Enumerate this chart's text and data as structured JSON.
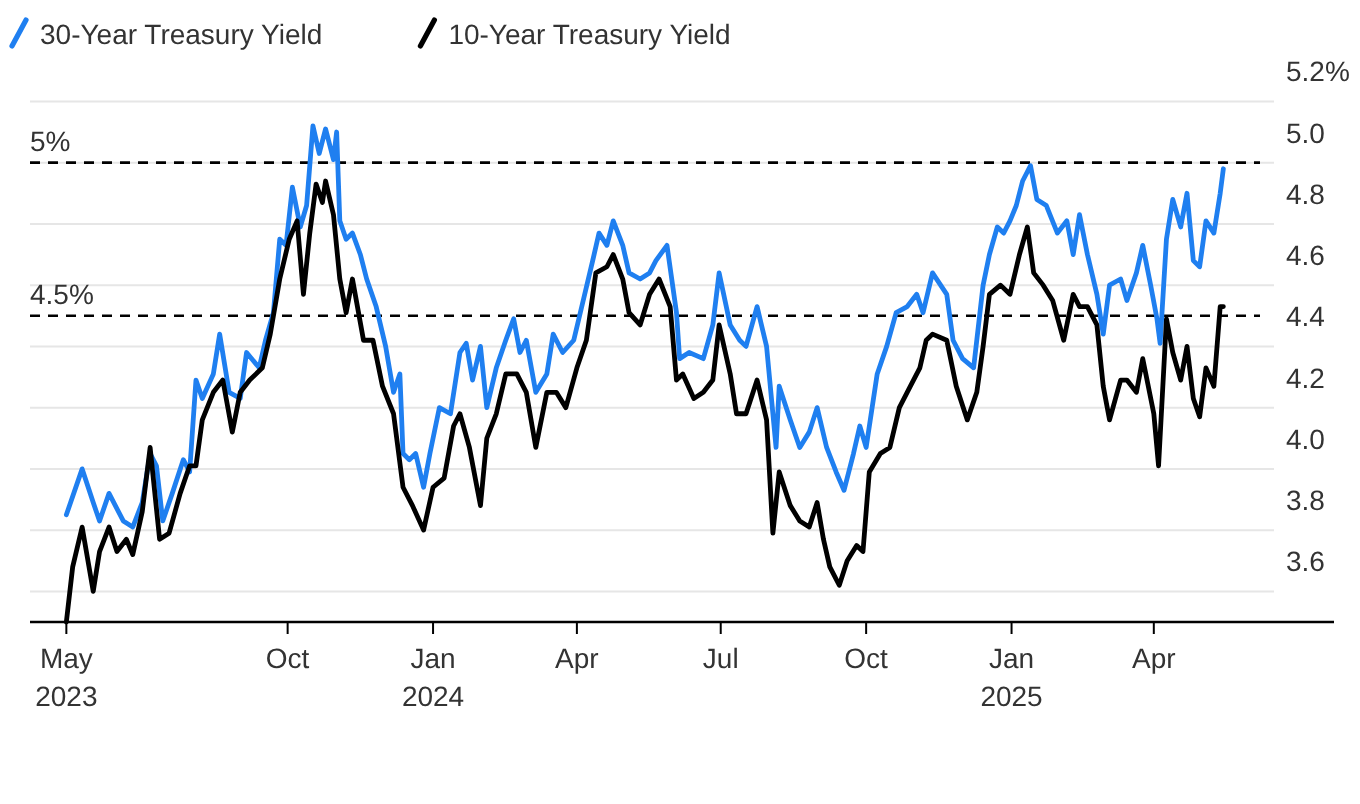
{
  "chart_data": {
    "type": "line",
    "legend": "top left",
    "grid": "y",
    "xlim": [
      "2023-04-21",
      "2025-07-24"
    ],
    "ylim": [
      3.5,
      5.2
    ],
    "xticks": [
      {
        "value": "2023-05-14",
        "label": "May\n2023"
      },
      {
        "value": "2023-10-01",
        "label": "Oct"
      },
      {
        "value": "2024-01-01",
        "label": "Jan\n2024"
      },
      {
        "value": "2024-04-01",
        "label": "Apr"
      },
      {
        "value": "2024-07-01",
        "label": "Jul"
      },
      {
        "value": "2024-10-01",
        "label": "Oct"
      },
      {
        "value": "2025-01-01",
        "label": "Jan\n2025"
      },
      {
        "value": "2025-04-01",
        "label": "Apr"
      }
    ],
    "yticks": [
      3.6,
      3.8,
      {
        "value": 4,
        "label": "4.0"
      },
      4.2,
      4.4,
      4.6,
      4.8,
      {
        "value": 5,
        "label": "5.0"
      },
      {
        "value": 5.2,
        "label": "5.2%"
      }
    ],
    "ref_lines": [
      {
        "axis": "y",
        "value": 5,
        "label": "5%",
        "line_style": "dashed",
        "color": "#000000"
      },
      {
        "axis": "y",
        "value": 4.5,
        "label": "4.5%",
        "line_style": "dashed",
        "color": "#000000"
      }
    ],
    "series": [
      {
        "name": "30-Year Treasury Yield",
        "color": "#1f7ff0",
        "x": [
          "2023-05-14",
          "2023-05-24",
          "2023-05-31",
          "2023-06-04",
          "2023-06-10",
          "2023-06-19",
          "2023-06-25",
          "2023-07-01",
          "2023-07-06",
          "2023-07-10",
          "2023-07-14",
          "2023-07-20",
          "2023-07-27",
          "2023-07-31",
          "2023-08-04",
          "2023-08-08",
          "2023-08-15",
          "2023-08-19",
          "2023-08-25",
          "2023-09-01",
          "2023-09-05",
          "2023-09-13",
          "2023-09-17",
          "2023-09-22",
          "2023-09-26",
          "2023-09-30",
          "2023-10-04",
          "2023-10-09",
          "2023-10-13",
          "2023-10-17",
          "2023-10-21",
          "2023-10-25",
          "2023-10-30",
          "2023-11-01",
          "2023-11-03",
          "2023-11-07",
          "2023-11-11",
          "2023-11-16",
          "2023-11-20",
          "2023-11-26",
          "2023-12-02",
          "2023-12-07",
          "2023-12-11",
          "2023-12-13",
          "2023-12-17",
          "2023-12-21",
          "2023-12-26",
          "2023-12-30",
          "2024-01-05",
          "2024-01-12",
          "2024-01-18",
          "2024-01-22",
          "2024-01-26",
          "2024-01-31",
          "2024-02-04",
          "2024-02-10",
          "2024-02-16",
          "2024-02-21",
          "2024-02-25",
          "2024-02-29",
          "2024-03-06",
          "2024-03-13",
          "2024-03-17",
          "2024-03-23",
          "2024-03-30",
          "2024-04-05",
          "2024-04-11",
          "2024-04-15",
          "2024-04-20",
          "2024-04-24",
          "2024-04-30",
          "2024-05-04",
          "2024-05-11",
          "2024-05-17",
          "2024-05-21",
          "2024-05-28",
          "2024-06-03",
          "2024-06-05",
          "2024-06-11",
          "2024-06-20",
          "2024-06-26",
          "2024-06-30",
          "2024-07-07",
          "2024-07-13",
          "2024-07-17",
          "2024-07-24",
          "2024-07-30",
          "2024-08-05",
          "2024-08-07",
          "2024-08-14",
          "2024-08-20",
          "2024-08-26",
          "2024-08-31",
          "2024-09-06",
          "2024-09-12",
          "2024-09-17",
          "2024-09-23",
          "2024-09-27",
          "2024-10-01",
          "2024-10-08",
          "2024-10-14",
          "2024-10-20",
          "2024-10-27",
          "2024-11-02",
          "2024-11-06",
          "2024-11-12",
          "2024-11-21",
          "2024-11-25",
          "2024-12-01",
          "2024-12-08",
          "2024-12-14",
          "2024-12-18",
          "2024-12-23",
          "2024-12-27",
          "2024-12-31",
          "2025-01-04",
          "2025-01-08",
          "2025-01-13",
          "2025-01-17",
          "2025-01-23",
          "2025-01-30",
          "2025-02-05",
          "2025-02-09",
          "2025-02-13",
          "2025-02-18",
          "2025-02-24",
          "2025-02-28",
          "2025-03-04",
          "2025-03-11",
          "2025-03-15",
          "2025-03-21",
          "2025-03-25",
          "2025-03-30",
          "2025-04-03",
          "2025-04-05",
          "2025-04-09",
          "2025-04-13",
          "2025-04-18",
          "2025-04-22",
          "2025-04-26",
          "2025-04-30",
          "2025-05-04",
          "2025-05-09",
          "2025-05-13",
          "2025-05-15"
        ],
        "values": [
          3.85,
          4.0,
          3.89,
          3.83,
          3.92,
          3.83,
          3.81,
          3.89,
          4.05,
          4.01,
          3.83,
          3.92,
          4.03,
          3.99,
          4.29,
          4.23,
          4.31,
          4.44,
          4.25,
          4.23,
          4.38,
          4.33,
          4.42,
          4.51,
          4.75,
          4.73,
          4.92,
          4.79,
          4.86,
          5.12,
          5.03,
          5.11,
          5.01,
          5.1,
          4.81,
          4.75,
          4.77,
          4.7,
          4.62,
          4.53,
          4.4,
          4.25,
          4.31,
          4.05,
          4.03,
          4.05,
          3.94,
          4.05,
          4.2,
          4.18,
          4.38,
          4.41,
          4.29,
          4.4,
          4.2,
          4.33,
          4.42,
          4.49,
          4.38,
          4.42,
          4.25,
          4.31,
          4.44,
          4.38,
          4.42,
          4.55,
          4.68,
          4.77,
          4.73,
          4.81,
          4.73,
          4.64,
          4.62,
          4.64,
          4.68,
          4.73,
          4.51,
          4.36,
          4.38,
          4.36,
          4.47,
          4.64,
          4.47,
          4.42,
          4.4,
          4.53,
          4.4,
          4.07,
          4.27,
          4.16,
          4.07,
          4.12,
          4.2,
          4.07,
          3.99,
          3.93,
          4.05,
          4.14,
          4.07,
          4.31,
          4.4,
          4.51,
          4.53,
          4.57,
          4.51,
          4.64,
          4.57,
          4.42,
          4.36,
          4.33,
          4.6,
          4.7,
          4.79,
          4.77,
          4.81,
          4.86,
          4.94,
          4.99,
          4.88,
          4.86,
          4.77,
          4.81,
          4.7,
          4.83,
          4.7,
          4.57,
          4.44,
          4.6,
          4.62,
          4.55,
          4.64,
          4.73,
          4.6,
          4.49,
          4.41,
          4.75,
          4.88,
          4.79,
          4.9,
          4.68,
          4.66,
          4.81,
          4.77,
          4.9,
          4.98
        ]
      },
      {
        "name": "10-Year Treasury Yield",
        "color": "#000000",
        "x": [
          "2023-05-14",
          "2023-05-18",
          "2023-05-24",
          "2023-05-31",
          "2023-06-04",
          "2023-06-10",
          "2023-06-15",
          "2023-06-21",
          "2023-06-25",
          "2023-07-01",
          "2023-07-06",
          "2023-07-12",
          "2023-07-18",
          "2023-07-25",
          "2023-07-31",
          "2023-08-04",
          "2023-08-08",
          "2023-08-15",
          "2023-08-21",
          "2023-08-27",
          "2023-09-01",
          "2023-09-07",
          "2023-09-15",
          "2023-09-20",
          "2023-09-26",
          "2023-10-02",
          "2023-10-07",
          "2023-10-11",
          "2023-10-15",
          "2023-10-19",
          "2023-10-23",
          "2023-10-25",
          "2023-10-30",
          "2023-11-03",
          "2023-11-07",
          "2023-11-11",
          "2023-11-18",
          "2023-11-24",
          "2023-11-30",
          "2023-12-07",
          "2023-12-13",
          "2023-12-19",
          "2023-12-26",
          "2024-01-01",
          "2024-01-08",
          "2024-01-14",
          "2024-01-18",
          "2024-01-24",
          "2024-01-31",
          "2024-02-04",
          "2024-02-10",
          "2024-02-16",
          "2024-02-23",
          "2024-02-29",
          "2024-03-06",
          "2024-03-13",
          "2024-03-19",
          "2024-03-25",
          "2024-04-01",
          "2024-04-07",
          "2024-04-13",
          "2024-04-20",
          "2024-04-24",
          "2024-04-30",
          "2024-05-04",
          "2024-05-11",
          "2024-05-17",
          "2024-05-23",
          "2024-05-30",
          "2024-06-03",
          "2024-06-07",
          "2024-06-14",
          "2024-06-20",
          "2024-06-26",
          "2024-06-30",
          "2024-07-07",
          "2024-07-11",
          "2024-07-17",
          "2024-07-24",
          "2024-07-30",
          "2024-08-03",
          "2024-08-07",
          "2024-08-14",
          "2024-08-20",
          "2024-08-26",
          "2024-08-31",
          "2024-09-04",
          "2024-09-08",
          "2024-09-14",
          "2024-09-19",
          "2024-09-25",
          "2024-09-29",
          "2024-10-03",
          "2024-10-10",
          "2024-10-16",
          "2024-10-22",
          "2024-10-29",
          "2024-11-04",
          "2024-11-08",
          "2024-11-12",
          "2024-11-21",
          "2024-11-27",
          "2024-12-04",
          "2024-12-10",
          "2024-12-14",
          "2024-12-18",
          "2024-12-25",
          "2024-12-31",
          "2025-01-06",
          "2025-01-11",
          "2025-01-15",
          "2025-01-21",
          "2025-01-27",
          "2025-02-03",
          "2025-02-09",
          "2025-02-13",
          "2025-02-18",
          "2025-02-24",
          "2025-02-28",
          "2025-03-04",
          "2025-03-11",
          "2025-03-15",
          "2025-03-21",
          "2025-03-25",
          "2025-04-01",
          "2025-04-04",
          "2025-04-09",
          "2025-04-13",
          "2025-04-18",
          "2025-04-22",
          "2025-04-26",
          "2025-04-30",
          "2025-05-04",
          "2025-05-09",
          "2025-05-13",
          "2025-05-15"
        ],
        "values": [
          3.5,
          3.68,
          3.81,
          3.6,
          3.73,
          3.81,
          3.73,
          3.77,
          3.72,
          3.86,
          4.07,
          3.77,
          3.79,
          3.92,
          4.01,
          4.01,
          4.16,
          4.25,
          4.29,
          4.12,
          4.25,
          4.29,
          4.33,
          4.44,
          4.62,
          4.75,
          4.81,
          4.57,
          4.77,
          4.93,
          4.87,
          4.94,
          4.83,
          4.62,
          4.51,
          4.62,
          4.42,
          4.42,
          4.27,
          4.18,
          3.94,
          3.88,
          3.8,
          3.94,
          3.97,
          4.14,
          4.18,
          4.07,
          3.88,
          4.1,
          4.18,
          4.31,
          4.31,
          4.25,
          4.07,
          4.25,
          4.25,
          4.2,
          4.33,
          4.42,
          4.64,
          4.66,
          4.7,
          4.62,
          4.51,
          4.47,
          4.57,
          4.62,
          4.53,
          4.29,
          4.31,
          4.23,
          4.25,
          4.29,
          4.47,
          4.31,
          4.18,
          4.18,
          4.29,
          4.16,
          3.79,
          3.99,
          3.88,
          3.83,
          3.81,
          3.89,
          3.77,
          3.68,
          3.62,
          3.7,
          3.75,
          3.73,
          3.99,
          4.05,
          4.07,
          4.2,
          4.27,
          4.33,
          4.42,
          4.44,
          4.42,
          4.27,
          4.16,
          4.25,
          4.4,
          4.57,
          4.6,
          4.57,
          4.7,
          4.79,
          4.64,
          4.6,
          4.55,
          4.42,
          4.57,
          4.53,
          4.53,
          4.47,
          4.27,
          4.16,
          4.29,
          4.29,
          4.25,
          4.36,
          4.18,
          4.01,
          4.49,
          4.38,
          4.29,
          4.4,
          4.23,
          4.17,
          4.33,
          4.27,
          4.53,
          4.53
        ]
      }
    ]
  }
}
